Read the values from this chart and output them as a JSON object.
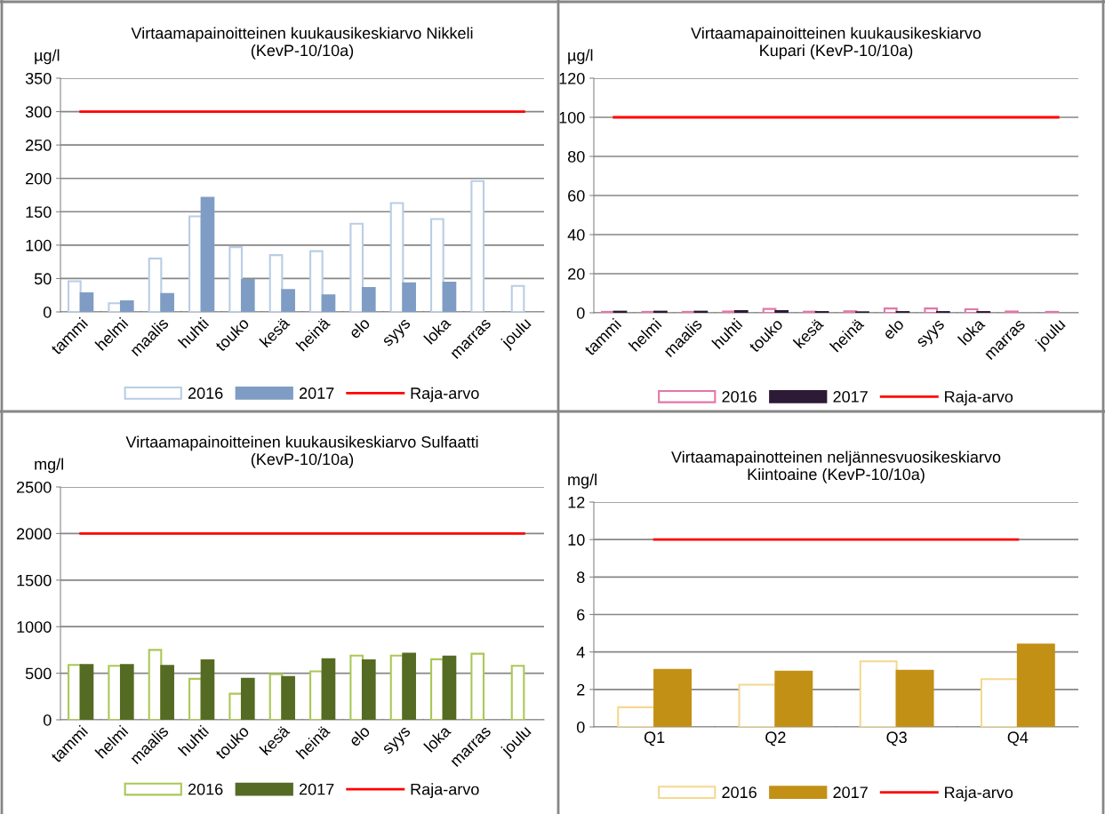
{
  "chart_data": [
    {
      "type": "bar",
      "title": "Virtaamapainoitteinen kuukausikeskiarvo Nikkeli\n(KevP-10/10a)",
      "ylabel": "µg/l",
      "categories": [
        "tammi",
        "helmi",
        "maalis",
        "huhti",
        "touko",
        "kesä",
        "heinä",
        "elo",
        "syys",
        "loka",
        "marras",
        "joulu"
      ],
      "series": [
        {
          "name": "2016",
          "color": "#b9cde5",
          "values": [
            46,
            13,
            80,
            143,
            97,
            85,
            91,
            132,
            163,
            139,
            196,
            39
          ]
        },
        {
          "name": "2017",
          "color": "#7f9dc4",
          "values": [
            28,
            16,
            27,
            171,
            48,
            33,
            25,
            36,
            43,
            44,
            null,
            null
          ]
        },
        {
          "name": "Raja-arvo",
          "type": "line",
          "color": "#ff0000",
          "values": [
            300,
            300,
            300,
            300,
            300,
            300,
            300,
            300,
            300,
            300,
            300,
            300
          ]
        }
      ],
      "ylim": [
        0,
        350
      ],
      "yticks": [
        0,
        50,
        100,
        150,
        200,
        250,
        300,
        350
      ],
      "grid": "y",
      "legend": "bottom"
    },
    {
      "type": "bar",
      "title": "Virtaamapainoitteinen kuukausikeskiarvo\nKupari (KevP-10/10a)",
      "ylabel": "µg/l",
      "categories": [
        "tammi",
        "helmi",
        "maalis",
        "huhti",
        "touko",
        "kesä",
        "heinä",
        "elo",
        "syys",
        "loka",
        "marras",
        "joulu"
      ],
      "series": [
        {
          "name": "2016",
          "color": "#e377a9",
          "values": [
            0.5,
            0.5,
            0.5,
            0.7,
            2,
            0.6,
            0.8,
            2.2,
            2.2,
            1.8,
            0.7,
            0.5
          ]
        },
        {
          "name": "2017",
          "color": "#2c1a36",
          "values": [
            0.6,
            0.6,
            0.6,
            0.9,
            0.9,
            0.4,
            0.3,
            0.4,
            0.4,
            0.4,
            null,
            null
          ]
        },
        {
          "name": "Raja-arvo",
          "type": "line",
          "color": "#ff0000",
          "values": [
            100,
            100,
            100,
            100,
            100,
            100,
            100,
            100,
            100,
            100,
            100,
            100
          ]
        }
      ],
      "ylim": [
        0,
        120
      ],
      "yticks": [
        0,
        20,
        40,
        60,
        80,
        100,
        120
      ],
      "grid": "y",
      "legend": "bottom"
    },
    {
      "type": "bar",
      "title": "Virtaamapainoitteinen kuukausikeskiarvo Sulfaatti\n(KevP-10/10a)",
      "ylabel": "mg/l",
      "categories": [
        "tammi",
        "helmi",
        "maalis",
        "huhti",
        "touko",
        "kesä",
        "heinä",
        "elo",
        "syys",
        "loka",
        "marras",
        "joulu"
      ],
      "series": [
        {
          "name": "2016",
          "color": "#a9c855",
          "values": [
            590,
            580,
            750,
            440,
            280,
            490,
            520,
            690,
            690,
            650,
            710,
            580
          ]
        },
        {
          "name": "2017",
          "color": "#556b24",
          "values": [
            590,
            590,
            580,
            640,
            440,
            460,
            650,
            640,
            710,
            680,
            null,
            null
          ]
        },
        {
          "name": "Raja-arvo",
          "type": "line",
          "color": "#ff0000",
          "values": [
            2000,
            2000,
            2000,
            2000,
            2000,
            2000,
            2000,
            2000,
            2000,
            2000,
            2000,
            2000
          ]
        }
      ],
      "ylim": [
        0,
        2500
      ],
      "yticks": [
        0,
        500,
        1000,
        1500,
        2000,
        2500
      ],
      "grid": "y",
      "legend": "bottom"
    },
    {
      "type": "bar",
      "title": "Virtaamapainotteinen neljännesvuosikeskiarvo\nKiintoaine (KevP-10/10a)",
      "ylabel": "mg/l",
      "categories": [
        "Q1",
        "Q2",
        "Q3",
        "Q4"
      ],
      "series": [
        {
          "name": "2016",
          "color": "#f5d88f",
          "values": [
            1.05,
            2.25,
            3.5,
            2.55
          ]
        },
        {
          "name": "2017",
          "color": "#c39016",
          "values": [
            3.05,
            2.95,
            3.0,
            4.4
          ]
        },
        {
          "name": "Raja-arvo",
          "type": "line",
          "color": "#ff0000",
          "values": [
            10,
            10,
            10,
            10
          ]
        }
      ],
      "ylim": [
        0,
        12
      ],
      "yticks": [
        0,
        2,
        4,
        6,
        8,
        10,
        12
      ],
      "grid": "y",
      "legend": "bottom"
    }
  ]
}
